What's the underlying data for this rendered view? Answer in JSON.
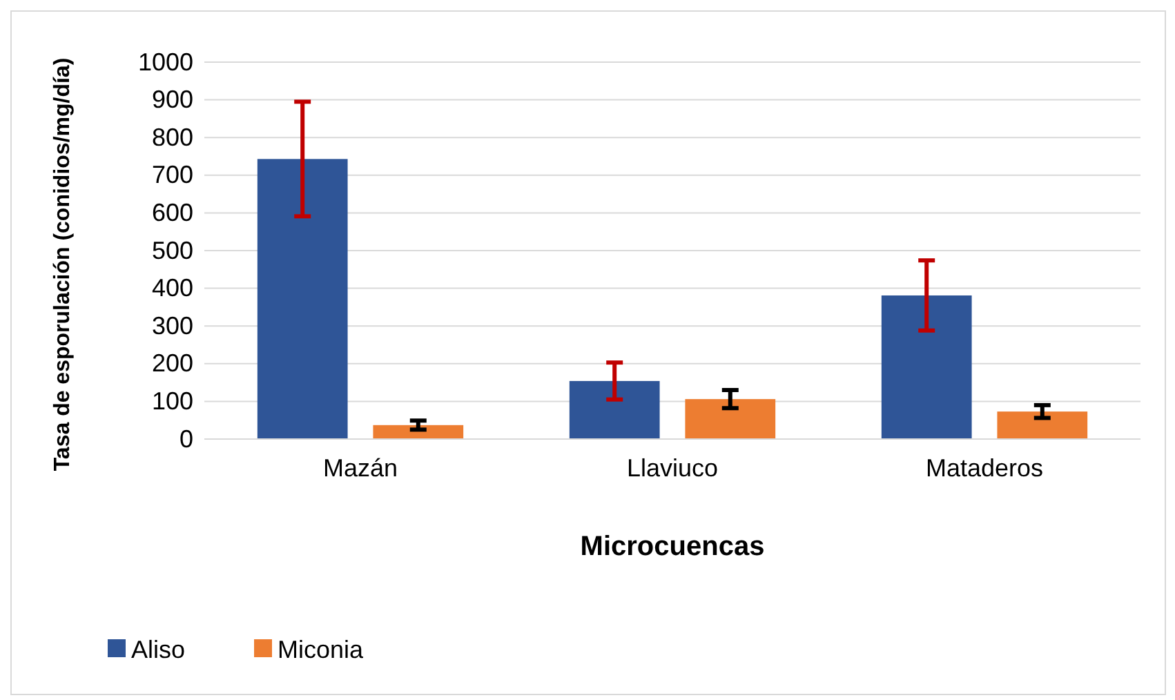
{
  "chart_data": {
    "type": "bar",
    "xlabel": "Microcuencas",
    "ylabel": "Tasa de esporulación (conidios/mg/día)",
    "categories": [
      "Mazán",
      "Llaviuco",
      "Mataderos"
    ],
    "series": [
      {
        "name": "Aliso",
        "color": "#2f5597",
        "values": [
          743,
          154,
          381
        ],
        "errors": [
          152,
          49,
          93
        ]
      },
      {
        "name": "Miconia",
        "color": "#ed7d31",
        "values": [
          37,
          106,
          73
        ],
        "errors": [
          12,
          24,
          17
        ]
      }
    ],
    "ylim": [
      0,
      1000
    ],
    "yticks": [
      0,
      100,
      200,
      300,
      400,
      500,
      600,
      700,
      800,
      900,
      1000
    ],
    "grid": "y",
    "legend": "bottom left"
  }
}
